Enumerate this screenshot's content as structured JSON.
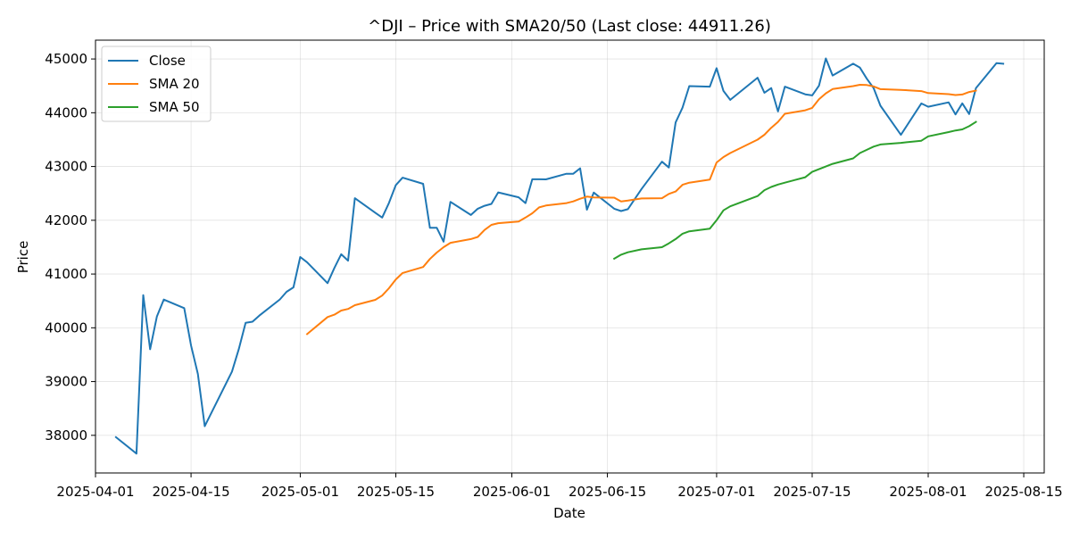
{
  "chart_data": {
    "type": "line",
    "title": "^DJI – Price with SMA20/50 (Last close: 44911.26)",
    "xlabel": "Date",
    "ylabel": "Price",
    "xlim": [
      "2025-04-01",
      "2025-08-18"
    ],
    "ylim": [
      37300,
      45350
    ],
    "grid": true,
    "legend_position": "upper left",
    "x_ticks": [
      "2025-04-01",
      "2025-04-15",
      "2025-05-01",
      "2025-05-15",
      "2025-06-01",
      "2025-06-15",
      "2025-07-01",
      "2025-07-15",
      "2025-08-01",
      "2025-08-15"
    ],
    "y_ticks": [
      38000,
      39000,
      40000,
      41000,
      42000,
      43000,
      44000,
      45000
    ],
    "series": [
      {
        "name": "Close",
        "color": "#1f77b4",
        "points": [
          [
            "2025-04-04",
            37966
          ],
          [
            "2025-04-07",
            37660
          ],
          [
            "2025-04-08",
            40608
          ],
          [
            "2025-04-09",
            39600
          ],
          [
            "2025-04-10",
            40212
          ],
          [
            "2025-04-11",
            40525
          ],
          [
            "2025-04-14",
            40365
          ],
          [
            "2025-04-15",
            39669
          ],
          [
            "2025-04-16",
            39142
          ],
          [
            "2025-04-17",
            38170
          ],
          [
            "2025-04-21",
            39186
          ],
          [
            "2025-04-22",
            39606
          ],
          [
            "2025-04-23",
            40093
          ],
          [
            "2025-04-24",
            40113
          ],
          [
            "2025-04-25",
            40227
          ],
          [
            "2025-04-28",
            40527
          ],
          [
            "2025-04-29",
            40669
          ],
          [
            "2025-04-30",
            40752
          ],
          [
            "2025-05-01",
            41317
          ],
          [
            "2025-05-02",
            41218
          ],
          [
            "2025-05-05",
            40830
          ],
          [
            "2025-05-06",
            41114
          ],
          [
            "2025-05-07",
            41368
          ],
          [
            "2025-05-08",
            41249
          ],
          [
            "2025-05-09",
            42410
          ],
          [
            "2025-05-12",
            42140
          ],
          [
            "2025-05-13",
            42051
          ],
          [
            "2025-05-14",
            42322
          ],
          [
            "2025-05-15",
            42655
          ],
          [
            "2025-05-16",
            42792
          ],
          [
            "2025-05-19",
            42677
          ],
          [
            "2025-05-20",
            41860
          ],
          [
            "2025-05-21",
            41859
          ],
          [
            "2025-05-22",
            41603
          ],
          [
            "2025-05-23",
            42343
          ],
          [
            "2025-05-26",
            42098
          ],
          [
            "2025-05-27",
            42215
          ],
          [
            "2025-05-28",
            42270
          ],
          [
            "2025-05-29",
            42305
          ],
          [
            "2025-05-30",
            42519
          ],
          [
            "2025-06-02",
            42427
          ],
          [
            "2025-06-03",
            42320
          ],
          [
            "2025-06-04",
            42763
          ],
          [
            "2025-06-05",
            42762
          ],
          [
            "2025-06-06",
            42761
          ],
          [
            "2025-06-09",
            42866
          ],
          [
            "2025-06-10",
            42866
          ],
          [
            "2025-06-11",
            42967
          ],
          [
            "2025-06-12",
            42197
          ],
          [
            "2025-06-13",
            42515
          ],
          [
            "2025-06-16",
            42215
          ],
          [
            "2025-06-17",
            42172
          ],
          [
            "2025-06-18",
            42206
          ],
          [
            "2025-06-20",
            42582
          ],
          [
            "2025-06-23",
            43089
          ],
          [
            "2025-06-24",
            42982
          ],
          [
            "2025-06-25",
            43819
          ],
          [
            "2025-06-26",
            44094
          ],
          [
            "2025-06-27",
            44495
          ],
          [
            "2025-06-30",
            44485
          ],
          [
            "2025-07-01",
            44828
          ],
          [
            "2025-07-02",
            44406
          ],
          [
            "2025-07-03",
            44240
          ],
          [
            "2025-07-07",
            44651
          ],
          [
            "2025-07-08",
            44372
          ],
          [
            "2025-07-09",
            44459
          ],
          [
            "2025-07-10",
            44023
          ],
          [
            "2025-07-11",
            44485
          ],
          [
            "2025-07-14",
            44342
          ],
          [
            "2025-07-15",
            44323
          ],
          [
            "2025-07-16",
            44502
          ],
          [
            "2025-07-17",
            45010
          ],
          [
            "2025-07-18",
            44693
          ],
          [
            "2025-07-21",
            44911
          ],
          [
            "2025-07-22",
            44838
          ],
          [
            "2025-07-23",
            44633
          ],
          [
            "2025-07-24",
            44461
          ],
          [
            "2025-07-25",
            44130
          ],
          [
            "2025-07-28",
            43589
          ],
          [
            "2025-07-31",
            44173
          ],
          [
            "2025-08-01",
            44111
          ],
          [
            "2025-08-04",
            44193
          ],
          [
            "2025-08-05",
            43969
          ],
          [
            "2025-08-06",
            44175
          ],
          [
            "2025-08-07",
            43976
          ],
          [
            "2025-08-08",
            44458
          ],
          [
            "2025-08-11",
            44922
          ],
          [
            "2025-08-12",
            44911
          ]
        ]
      },
      {
        "name": "SMA 20",
        "color": "#ff7f0e",
        "points": [
          [
            "2025-05-02",
            39882
          ],
          [
            "2025-05-05",
            40200
          ],
          [
            "2025-05-06",
            40245
          ],
          [
            "2025-05-07",
            40320
          ],
          [
            "2025-05-08",
            40350
          ],
          [
            "2025-05-09",
            40420
          ],
          [
            "2025-05-12",
            40520
          ],
          [
            "2025-05-13",
            40600
          ],
          [
            "2025-05-14",
            40735
          ],
          [
            "2025-05-15",
            40900
          ],
          [
            "2025-05-16",
            41020
          ],
          [
            "2025-05-19",
            41130
          ],
          [
            "2025-05-20",
            41280
          ],
          [
            "2025-05-21",
            41400
          ],
          [
            "2025-05-22",
            41500
          ],
          [
            "2025-05-23",
            41580
          ],
          [
            "2025-05-26",
            41650
          ],
          [
            "2025-05-27",
            41690
          ],
          [
            "2025-05-28",
            41820
          ],
          [
            "2025-05-29",
            41915
          ],
          [
            "2025-05-30",
            41945
          ],
          [
            "2025-06-02",
            41975
          ],
          [
            "2025-06-03",
            42050
          ],
          [
            "2025-06-04",
            42130
          ],
          [
            "2025-06-05",
            42240
          ],
          [
            "2025-06-06",
            42275
          ],
          [
            "2025-06-09",
            42320
          ],
          [
            "2025-06-10",
            42350
          ],
          [
            "2025-06-11",
            42400
          ],
          [
            "2025-06-12",
            42440
          ],
          [
            "2025-06-13",
            42425
          ],
          [
            "2025-06-16",
            42420
          ],
          [
            "2025-06-17",
            42350
          ],
          [
            "2025-06-18",
            42365
          ],
          [
            "2025-06-20",
            42405
          ],
          [
            "2025-06-23",
            42410
          ],
          [
            "2025-06-24",
            42490
          ],
          [
            "2025-06-25",
            42535
          ],
          [
            "2025-06-26",
            42660
          ],
          [
            "2025-06-27",
            42700
          ],
          [
            "2025-06-30",
            42755
          ],
          [
            "2025-07-01",
            43075
          ],
          [
            "2025-07-02",
            43175
          ],
          [
            "2025-07-03",
            43250
          ],
          [
            "2025-07-07",
            43500
          ],
          [
            "2025-07-08",
            43590
          ],
          [
            "2025-07-09",
            43720
          ],
          [
            "2025-07-10",
            43830
          ],
          [
            "2025-07-11",
            43980
          ],
          [
            "2025-07-14",
            44045
          ],
          [
            "2025-07-15",
            44090
          ],
          [
            "2025-07-16",
            44250
          ],
          [
            "2025-07-17",
            44360
          ],
          [
            "2025-07-18",
            44440
          ],
          [
            "2025-07-21",
            44495
          ],
          [
            "2025-07-22",
            44520
          ],
          [
            "2025-07-23",
            44515
          ],
          [
            "2025-07-24",
            44490
          ],
          [
            "2025-07-25",
            44438
          ],
          [
            "2025-07-28",
            44426
          ],
          [
            "2025-07-31",
            44402
          ],
          [
            "2025-08-01",
            44366
          ],
          [
            "2025-08-04",
            44345
          ],
          [
            "2025-08-05",
            44330
          ],
          [
            "2025-08-06",
            44340
          ],
          [
            "2025-08-07",
            44385
          ],
          [
            "2025-08-08",
            44412
          ]
        ]
      },
      {
        "name": "SMA 50",
        "color": "#2ca02c",
        "points": [
          [
            "2025-06-16",
            41285
          ],
          [
            "2025-06-17",
            41360
          ],
          [
            "2025-06-18",
            41405
          ],
          [
            "2025-06-20",
            41460
          ],
          [
            "2025-06-23",
            41500
          ],
          [
            "2025-06-24",
            41570
          ],
          [
            "2025-06-25",
            41650
          ],
          [
            "2025-06-26",
            41750
          ],
          [
            "2025-06-27",
            41795
          ],
          [
            "2025-06-30",
            41845
          ],
          [
            "2025-07-01",
            42000
          ],
          [
            "2025-07-02",
            42185
          ],
          [
            "2025-07-03",
            42260
          ],
          [
            "2025-07-07",
            42450
          ],
          [
            "2025-07-08",
            42560
          ],
          [
            "2025-07-09",
            42620
          ],
          [
            "2025-07-10",
            42665
          ],
          [
            "2025-07-11",
            42700
          ],
          [
            "2025-07-14",
            42800
          ],
          [
            "2025-07-15",
            42900
          ],
          [
            "2025-07-16",
            42950
          ],
          [
            "2025-07-17",
            43000
          ],
          [
            "2025-07-18",
            43050
          ],
          [
            "2025-07-21",
            43150
          ],
          [
            "2025-07-22",
            43250
          ],
          [
            "2025-07-23",
            43310
          ],
          [
            "2025-07-24",
            43370
          ],
          [
            "2025-07-25",
            43410
          ],
          [
            "2025-07-28",
            43440
          ],
          [
            "2025-07-31",
            43480
          ],
          [
            "2025-08-01",
            43560
          ],
          [
            "2025-08-04",
            43640
          ],
          [
            "2025-08-05",
            43670
          ],
          [
            "2025-08-06",
            43690
          ],
          [
            "2025-08-07",
            43750
          ],
          [
            "2025-08-08",
            43830
          ]
        ]
      }
    ]
  }
}
